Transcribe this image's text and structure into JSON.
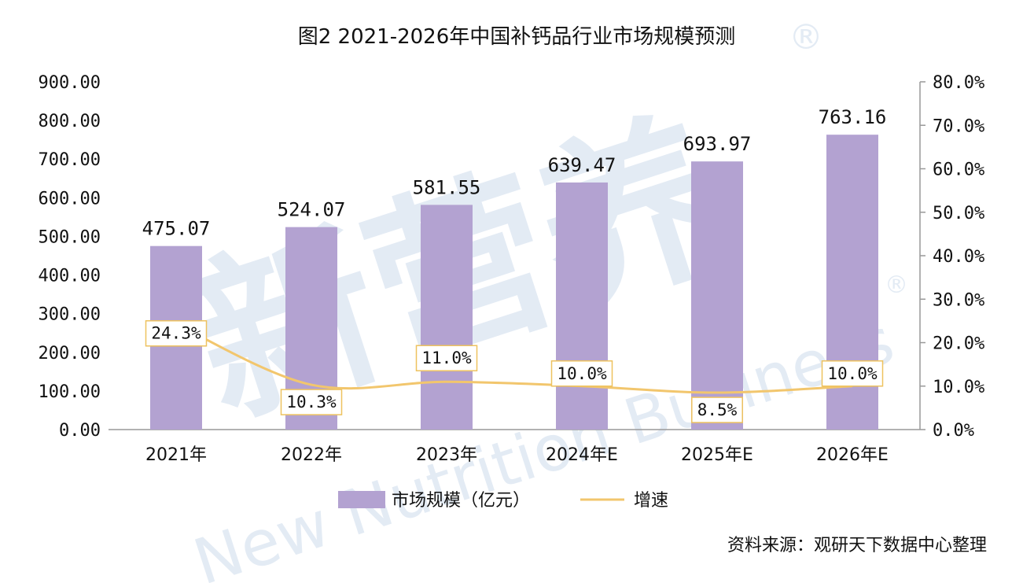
{
  "watermark": {
    "brand_cn": "新营养",
    "brand_en": "New Nutrition Business",
    "mark": "®"
  },
  "chart_data": {
    "type": "bar",
    "title": "图2 2021-2026年中国补钙品行业市场规模预测",
    "categories": [
      "2021年",
      "2022年",
      "2023年",
      "2024年E",
      "2025年E",
      "2026年E"
    ],
    "series": [
      {
        "name": "市场规模（亿元）",
        "type": "bar",
        "axis": "left",
        "values": [
          475.07,
          524.07,
          581.55,
          639.47,
          693.97,
          763.16
        ],
        "labels": [
          "475.07",
          "524.07",
          "581.55",
          "639.47",
          "693.97",
          "763.16"
        ]
      },
      {
        "name": "增速",
        "type": "line",
        "axis": "right",
        "values": [
          24.3,
          10.3,
          11.0,
          10.0,
          8.5,
          10.0
        ],
        "labels": [
          "24.3%",
          "10.3%",
          "11.0%",
          "10.0%",
          "8.5%",
          "10.0%"
        ]
      }
    ],
    "y_left": {
      "range": [
        0,
        900
      ],
      "ticks": [
        0,
        100,
        200,
        300,
        400,
        500,
        600,
        700,
        800,
        900
      ],
      "tick_labels": [
        "0.00",
        "100.00",
        "200.00",
        "300.00",
        "400.00",
        "500.00",
        "600.00",
        "700.00",
        "800.00",
        "900.00"
      ]
    },
    "y_right": {
      "range": [
        0,
        80
      ],
      "ticks": [
        0,
        10,
        20,
        30,
        40,
        50,
        60,
        70,
        80
      ],
      "tick_labels": [
        "0.0%",
        "10.0%",
        "20.0%",
        "30.0%",
        "40.0%",
        "50.0%",
        "60.0%",
        "70.0%",
        "80.0%"
      ]
    },
    "grid": false,
    "legend_position": "bottom",
    "colors": {
      "bar": "#b3a2d1",
      "line": "#f2c66d",
      "label_border": "#eec25f"
    },
    "source": "资料来源：观研天下数据中心整理"
  }
}
